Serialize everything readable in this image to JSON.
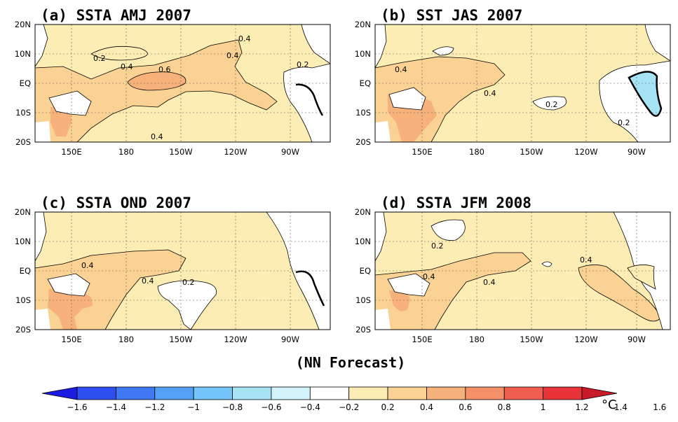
{
  "panels": [
    {
      "title": "(a) SSTA AMJ 2007",
      "labels": [
        "0.2",
        "0.4",
        "0.4",
        "0.6",
        "0.4",
        "0.4",
        "0.2"
      ]
    },
    {
      "title": "(b) SST  JAS 2007",
      "labels": [
        "0.4",
        "0.4",
        "0.2",
        "0.2"
      ]
    },
    {
      "title": "(c) SSTA OND 2007",
      "labels": [
        "0.4",
        "0.4",
        "0.2"
      ]
    },
    {
      "title": "(d) SSTA JFM 2008",
      "labels": [
        "0.2",
        "0.4",
        "0.4",
        "0.4"
      ]
    }
  ],
  "lat_ticks": [
    "20N",
    "10N",
    "EQ",
    "10S",
    "20S"
  ],
  "lon_ticks": [
    "150E",
    "180",
    "150W",
    "120W",
    "90W"
  ],
  "footer": "(NN Forecast)",
  "colorbar": {
    "ticks": [
      "-1.6",
      "-1.4",
      "-1.2",
      "-1",
      "-0.8",
      "-0.6",
      "-0.4",
      "-0.2",
      "0.2",
      "0.4",
      "0.6",
      "0.8",
      "1",
      "1.2",
      "1.4",
      "1.6"
    ],
    "unit": "°C",
    "colors": [
      "#1c1ce0",
      "#2e4ef0",
      "#3f78f2",
      "#55a0f7",
      "#74c6fa",
      "#a6e3f5",
      "#d2f4fb",
      "#ffffff",
      "#fcedb4",
      "#f9d294",
      "#f6b27a",
      "#f59069",
      "#ef5e50",
      "#e83438",
      "#c81a28"
    ]
  },
  "shading_colors": {
    "warm1": "#fcedb4",
    "warm2": "#f9d294",
    "warm3": "#f6b27a",
    "cool1": "#a6e3f5",
    "land": "#ffffff"
  }
}
